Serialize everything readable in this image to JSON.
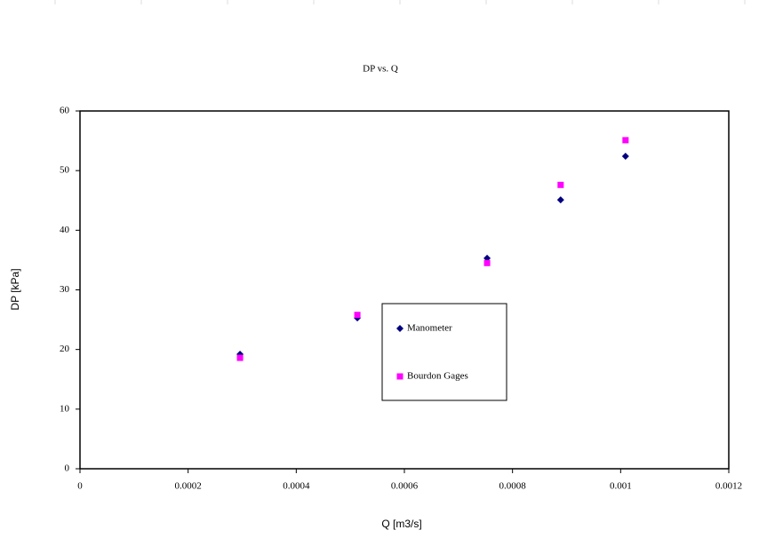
{
  "chart_data": {
    "type": "scatter",
    "title": "DP vs. Q",
    "x_label": "Q [m3/s]",
    "y_label": "DP [kPa]",
    "series": [
      {
        "name": "Manometer",
        "color": "#000080",
        "marker": "diamond",
        "x": [
          0.000296,
          0.000513,
          0.000753,
          0.000889,
          0.001009
        ],
        "values": [
          19.2,
          25.3,
          35.3,
          45.1,
          52.4
        ]
      },
      {
        "name": "Bourdon Gages",
        "color": "#ff00ff",
        "marker": "square",
        "x": [
          0.000296,
          0.000513,
          0.000753,
          0.000889,
          0.001009
        ],
        "values": [
          18.6,
          25.8,
          34.5,
          47.6,
          55.1
        ]
      }
    ],
    "xlim": [
      0,
      0.0012
    ],
    "xticks": [
      0,
      0.0002,
      0.0004,
      0.0006,
      0.0008,
      0.001,
      0.0012
    ],
    "ylim": [
      0,
      60
    ],
    "yticks": [
      0,
      10,
      20,
      30,
      40,
      50,
      60
    ],
    "grid": false,
    "legend_position": "center"
  }
}
